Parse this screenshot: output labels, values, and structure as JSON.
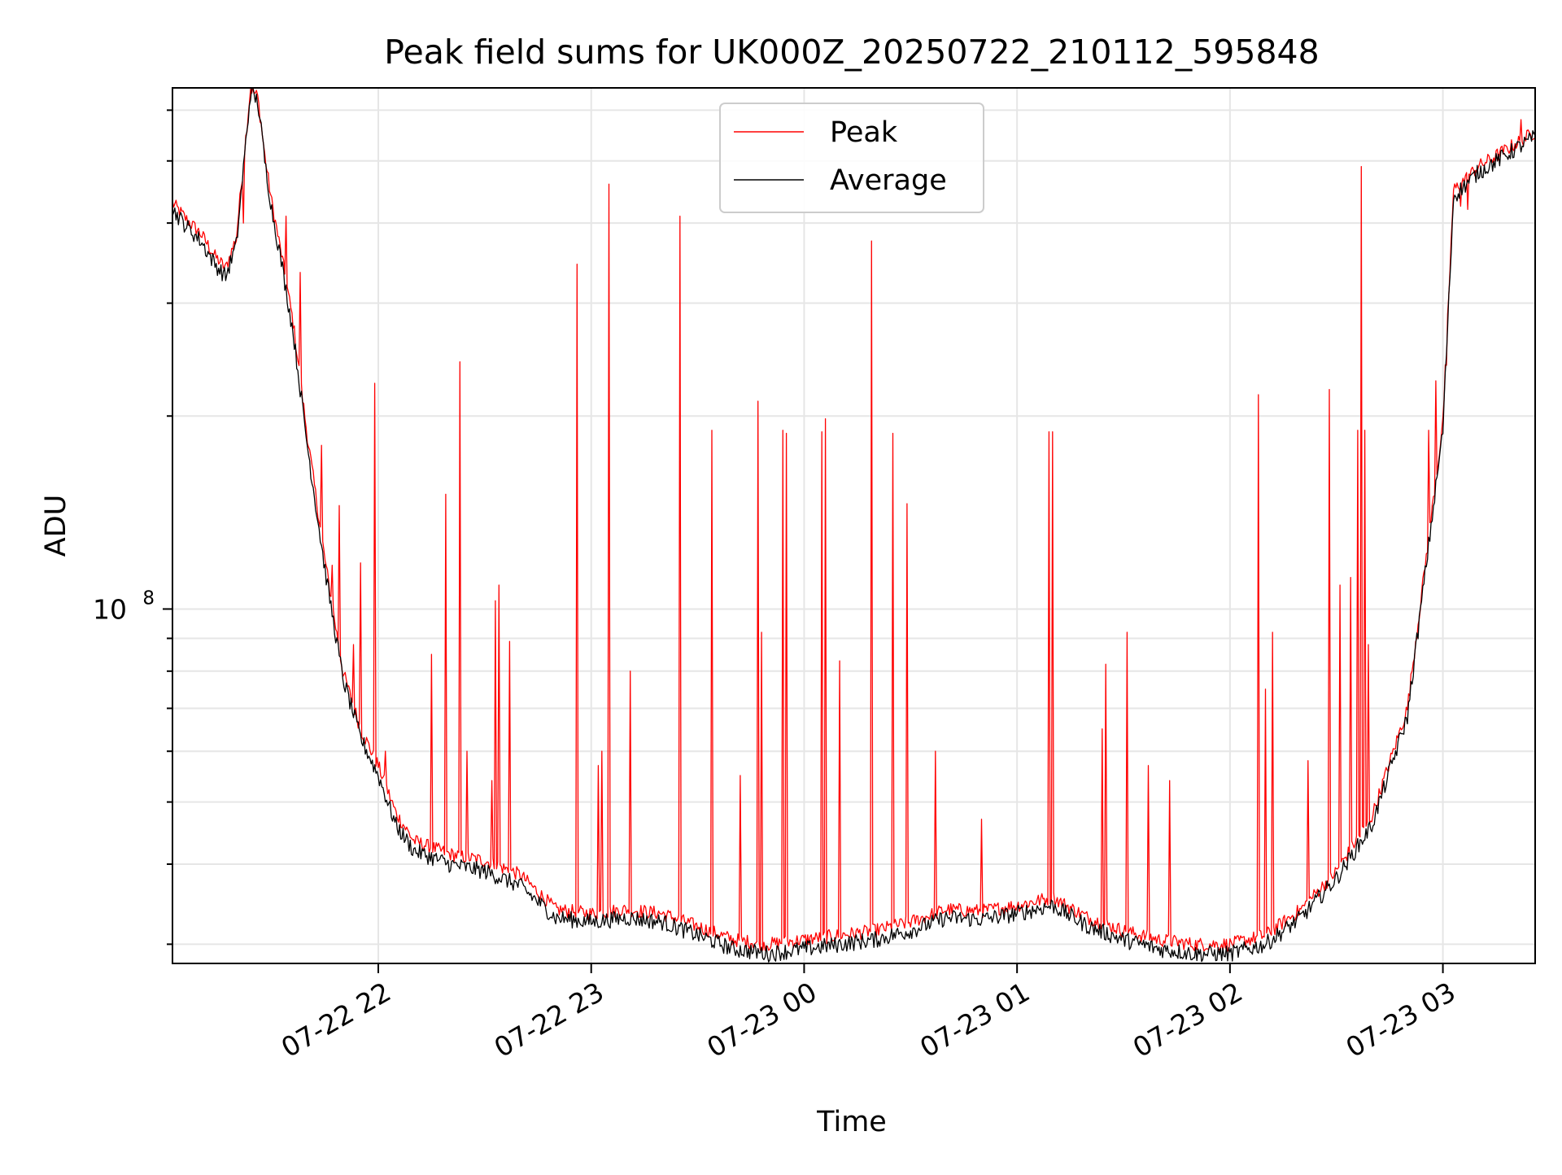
{
  "chart_data": {
    "type": "line",
    "title": "Peak field sums for UK000Z_20250722_210112_595848",
    "xlabel": "Time",
    "ylabel": "ADU",
    "y_scale": "log",
    "y_tick_label": "10",
    "y_tick_exponent": "8",
    "ylim": [
      28000000,
      650000000
    ],
    "xlim": [
      "2025-07-22 21:02",
      "2025-07-23 03:26"
    ],
    "x_ticks": [
      {
        "t": "2025-07-22 22:00",
        "label": "07-22 22"
      },
      {
        "t": "2025-07-22 23:00",
        "label": "07-22 23"
      },
      {
        "t": "2025-07-23 00:00",
        "label": "07-23 00"
      },
      {
        "t": "2025-07-23 01:00",
        "label": "07-23 01"
      },
      {
        "t": "2025-07-23 02:00",
        "label": "07-23 02"
      },
      {
        "t": "2025-07-23 03:00",
        "label": "07-23 03"
      }
    ],
    "grid": true,
    "legend": {
      "position": "top-center",
      "entries": [
        {
          "name": "Peak",
          "color": "#ff0000"
        },
        {
          "name": "Average",
          "color": "#000000"
        }
      ]
    },
    "series": [
      {
        "name": "Average",
        "color": "#000000",
        "x": [
          "2025-07-22 21:02",
          "2025-07-22 21:06",
          "2025-07-22 21:10",
          "2025-07-22 21:14",
          "2025-07-22 21:17",
          "2025-07-22 21:20",
          "2025-07-22 21:24",
          "2025-07-22 21:26",
          "2025-07-22 21:27",
          "2025-07-22 21:28",
          "2025-07-22 21:30",
          "2025-07-22 21:33",
          "2025-07-22 21:36",
          "2025-07-22 21:40",
          "2025-07-22 21:45",
          "2025-07-22 21:50",
          "2025-07-22 21:55",
          "2025-07-22 22:00",
          "2025-07-22 22:05",
          "2025-07-22 22:10",
          "2025-07-22 22:15",
          "2025-07-22 22:20",
          "2025-07-22 22:30",
          "2025-07-22 22:40",
          "2025-07-22 22:50",
          "2025-07-22 23:00",
          "2025-07-22 23:10",
          "2025-07-22 23:20",
          "2025-07-22 23:30",
          "2025-07-22 23:40",
          "2025-07-22 23:50",
          "2025-07-23 00:00",
          "2025-07-23 00:10",
          "2025-07-23 00:20",
          "2025-07-23 00:30",
          "2025-07-23 00:40",
          "2025-07-23 00:50",
          "2025-07-23 01:00",
          "2025-07-23 01:10",
          "2025-07-23 01:20",
          "2025-07-23 01:30",
          "2025-07-23 01:40",
          "2025-07-23 01:50",
          "2025-07-23 02:00",
          "2025-07-23 02:10",
          "2025-07-23 02:20",
          "2025-07-23 02:30",
          "2025-07-23 02:40",
          "2025-07-23 02:50",
          "2025-07-23 03:00",
          "2025-07-23 03:03",
          "2025-07-23 03:10",
          "2025-07-23 03:20",
          "2025-07-23 03:26"
        ],
        "values": [
          420000000,
          395000000,
          375000000,
          345000000,
          330000000,
          370000000,
          640000000,
          620000000,
          560000000,
          500000000,
          420000000,
          340000000,
          270000000,
          180000000,
          115000000,
          78000000,
          63000000,
          55000000,
          46000000,
          42000000,
          41000000,
          40000000,
          39000000,
          37000000,
          33000000,
          32500000,
          33000000,
          32500000,
          31000000,
          29500000,
          29000000,
          29500000,
          30000000,
          30500000,
          31500000,
          33000000,
          32800000,
          33500000,
          34500000,
          32000000,
          30500000,
          29500000,
          29000000,
          29000000,
          30000000,
          33000000,
          38000000,
          46000000,
          68000000,
          190000000,
          440000000,
          480000000,
          520000000,
          545000000
        ]
      },
      {
        "name": "Peak",
        "color": "#ff0000",
        "x": [
          "2025-07-22 21:02",
          "2025-07-22 21:06",
          "2025-07-22 21:10",
          "2025-07-22 21:14",
          "2025-07-22 21:17",
          "2025-07-22 21:20",
          "2025-07-22 21:24",
          "2025-07-22 21:26",
          "2025-07-22 21:27",
          "2025-07-22 21:28",
          "2025-07-22 21:30",
          "2025-07-22 21:33",
          "2025-07-22 21:36",
          "2025-07-22 21:40",
          "2025-07-22 21:45",
          "2025-07-22 21:50",
          "2025-07-22 21:55",
          "2025-07-22 22:00",
          "2025-07-22 22:05",
          "2025-07-22 22:10",
          "2025-07-22 22:15",
          "2025-07-22 22:20",
          "2025-07-22 22:30",
          "2025-07-22 22:40",
          "2025-07-22 22:50",
          "2025-07-22 23:00",
          "2025-07-22 23:10",
          "2025-07-22 23:20",
          "2025-07-22 23:30",
          "2025-07-22 23:40",
          "2025-07-22 23:50",
          "2025-07-23 00:00",
          "2025-07-23 00:10",
          "2025-07-23 00:20",
          "2025-07-23 00:30",
          "2025-07-23 00:40",
          "2025-07-23 00:50",
          "2025-07-23 01:00",
          "2025-07-23 01:10",
          "2025-07-23 01:20",
          "2025-07-23 01:30",
          "2025-07-23 01:40",
          "2025-07-23 01:50",
          "2025-07-23 02:00",
          "2025-07-23 02:10",
          "2025-07-23 02:20",
          "2025-07-23 02:30",
          "2025-07-23 02:40",
          "2025-07-23 02:50",
          "2025-07-23 03:00",
          "2025-07-23 03:03",
          "2025-07-23 03:10",
          "2025-07-23 03:20",
          "2025-07-23 03:26"
        ],
        "values": [
          430000000,
          405000000,
          385000000,
          355000000,
          340000000,
          380000000,
          650000000,
          630000000,
          570000000,
          510000000,
          430000000,
          350000000,
          280000000,
          186000000,
          119000000,
          80000000,
          65000000,
          57000000,
          48000000,
          43500000,
          42500000,
          41500000,
          40500000,
          38500000,
          34000000,
          33500000,
          34000000,
          33500000,
          32000000,
          30500000,
          30000000,
          30500000,
          31000000,
          31500000,
          32500000,
          34000000,
          33800000,
          34500000,
          35500000,
          33000000,
          31500000,
          30500000,
          30000000,
          30000000,
          31000000,
          34000000,
          39000000,
          47500000,
          70000000,
          195000000,
          450000000,
          490000000,
          530000000,
          555000000
        ],
        "spikes": [
          {
            "t": "2025-07-22 21:20",
            "v": 375000000
          },
          {
            "t": "2025-07-22 21:22",
            "v": 400000000
          },
          {
            "t": "2025-07-22 21:34",
            "v": 410000000
          },
          {
            "t": "2025-07-22 21:38",
            "v": 335000000
          },
          {
            "t": "2025-07-22 21:44",
            "v": 180000000
          },
          {
            "t": "2025-07-22 21:47",
            "v": 117000000
          },
          {
            "t": "2025-07-22 21:49",
            "v": 145000000
          },
          {
            "t": "2025-07-22 21:53",
            "v": 88000000
          },
          {
            "t": "2025-07-22 21:55",
            "v": 118000000
          },
          {
            "t": "2025-07-22 21:59",
            "v": 225000000
          },
          {
            "t": "2025-07-22 22:02",
            "v": 60000000
          },
          {
            "t": "2025-07-22 22:15",
            "v": 85000000
          },
          {
            "t": "2025-07-22 22:19",
            "v": 151000000
          },
          {
            "t": "2025-07-22 22:23",
            "v": 243000000
          },
          {
            "t": "2025-07-22 22:25",
            "v": 60000000
          },
          {
            "t": "2025-07-22 22:32",
            "v": 54000000
          },
          {
            "t": "2025-07-22 22:33",
            "v": 103000000
          },
          {
            "t": "2025-07-22 22:34",
            "v": 109000000
          },
          {
            "t": "2025-07-22 22:37",
            "v": 89000000
          },
          {
            "t": "2025-07-22 22:56",
            "v": 345000000
          },
          {
            "t": "2025-07-22 23:02",
            "v": 57000000
          },
          {
            "t": "2025-07-22 23:03",
            "v": 60000000
          },
          {
            "t": "2025-07-22 23:05",
            "v": 460000000
          },
          {
            "t": "2025-07-22 23:11",
            "v": 80000000
          },
          {
            "t": "2025-07-22 23:25",
            "v": 410000000
          },
          {
            "t": "2025-07-22 23:34",
            "v": 190000000
          },
          {
            "t": "2025-07-22 23:42",
            "v": 55000000
          },
          {
            "t": "2025-07-22 23:47",
            "v": 211000000
          },
          {
            "t": "2025-07-22 23:48",
            "v": 92000000
          },
          {
            "t": "2025-07-22 23:54",
            "v": 190000000
          },
          {
            "t": "2025-07-22 23:55",
            "v": 188000000
          },
          {
            "t": "2025-07-23 00:05",
            "v": 189000000
          },
          {
            "t": "2025-07-23 00:06",
            "v": 198000000
          },
          {
            "t": "2025-07-23 00:10",
            "v": 83000000
          },
          {
            "t": "2025-07-23 00:19",
            "v": 375000000
          },
          {
            "t": "2025-07-23 00:25",
            "v": 188000000
          },
          {
            "t": "2025-07-23 00:29",
            "v": 146000000
          },
          {
            "t": "2025-07-23 00:37",
            "v": 60000000
          },
          {
            "t": "2025-07-23 00:50",
            "v": 47000000
          },
          {
            "t": "2025-07-23 01:09",
            "v": 189000000
          },
          {
            "t": "2025-07-23 01:10",
            "v": 189000000
          },
          {
            "t": "2025-07-23 01:24",
            "v": 65000000
          },
          {
            "t": "2025-07-23 01:25",
            "v": 82000000
          },
          {
            "t": "2025-07-23 01:31",
            "v": 92000000
          },
          {
            "t": "2025-07-23 01:37",
            "v": 57000000
          },
          {
            "t": "2025-07-23 01:43",
            "v": 54000000
          },
          {
            "t": "2025-07-23 02:08",
            "v": 216000000
          },
          {
            "t": "2025-07-23 02:10",
            "v": 75000000
          },
          {
            "t": "2025-07-23 02:12",
            "v": 92000000
          },
          {
            "t": "2025-07-23 02:22",
            "v": 58000000
          },
          {
            "t": "2025-07-23 02:28",
            "v": 220000000
          },
          {
            "t": "2025-07-23 02:31",
            "v": 109000000
          },
          {
            "t": "2025-07-23 02:34",
            "v": 112000000
          },
          {
            "t": "2025-07-23 02:36",
            "v": 190000000
          },
          {
            "t": "2025-07-23 02:37",
            "v": 490000000
          },
          {
            "t": "2025-07-23 02:38",
            "v": 190000000
          },
          {
            "t": "2025-07-23 02:39",
            "v": 88000000
          },
          {
            "t": "2025-07-23 02:56",
            "v": 190000000
          },
          {
            "t": "2025-07-23 02:58",
            "v": 227000000
          },
          {
            "t": "2025-07-23 03:01",
            "v": 240000000
          },
          {
            "t": "2025-07-23 03:05",
            "v": 425000000
          },
          {
            "t": "2025-07-23 03:07",
            "v": 420000000
          },
          {
            "t": "2025-07-23 03:22",
            "v": 580000000
          }
        ]
      }
    ]
  }
}
